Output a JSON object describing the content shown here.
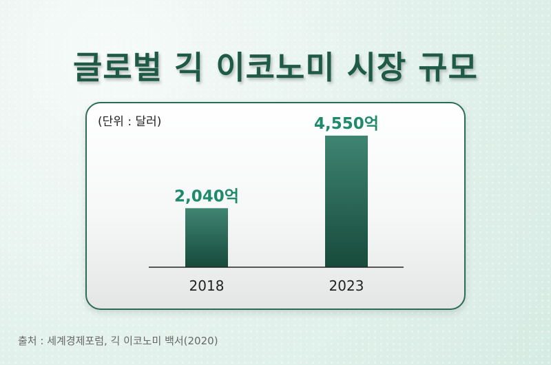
{
  "title": "글로벌 긱 이코노미 시장 규모",
  "unit_label": "(단위 : 달러)",
  "source": "출처 : 세계경제포럼, 긱 이코노미 백서(2020)",
  "colors": {
    "bar_top": "#3f8472",
    "bar_bottom": "#174a3b",
    "value_label": "#1e8a6a",
    "title": "#1e5a46",
    "axis": "#222222"
  },
  "chart_data": {
    "type": "bar",
    "categories": [
      "2018",
      "2023"
    ],
    "values": [
      2040,
      4550
    ],
    "value_labels": [
      "2,040억",
      "4,550억"
    ],
    "ylim": [
      0,
      5000
    ],
    "grid": false,
    "legend": "none"
  }
}
